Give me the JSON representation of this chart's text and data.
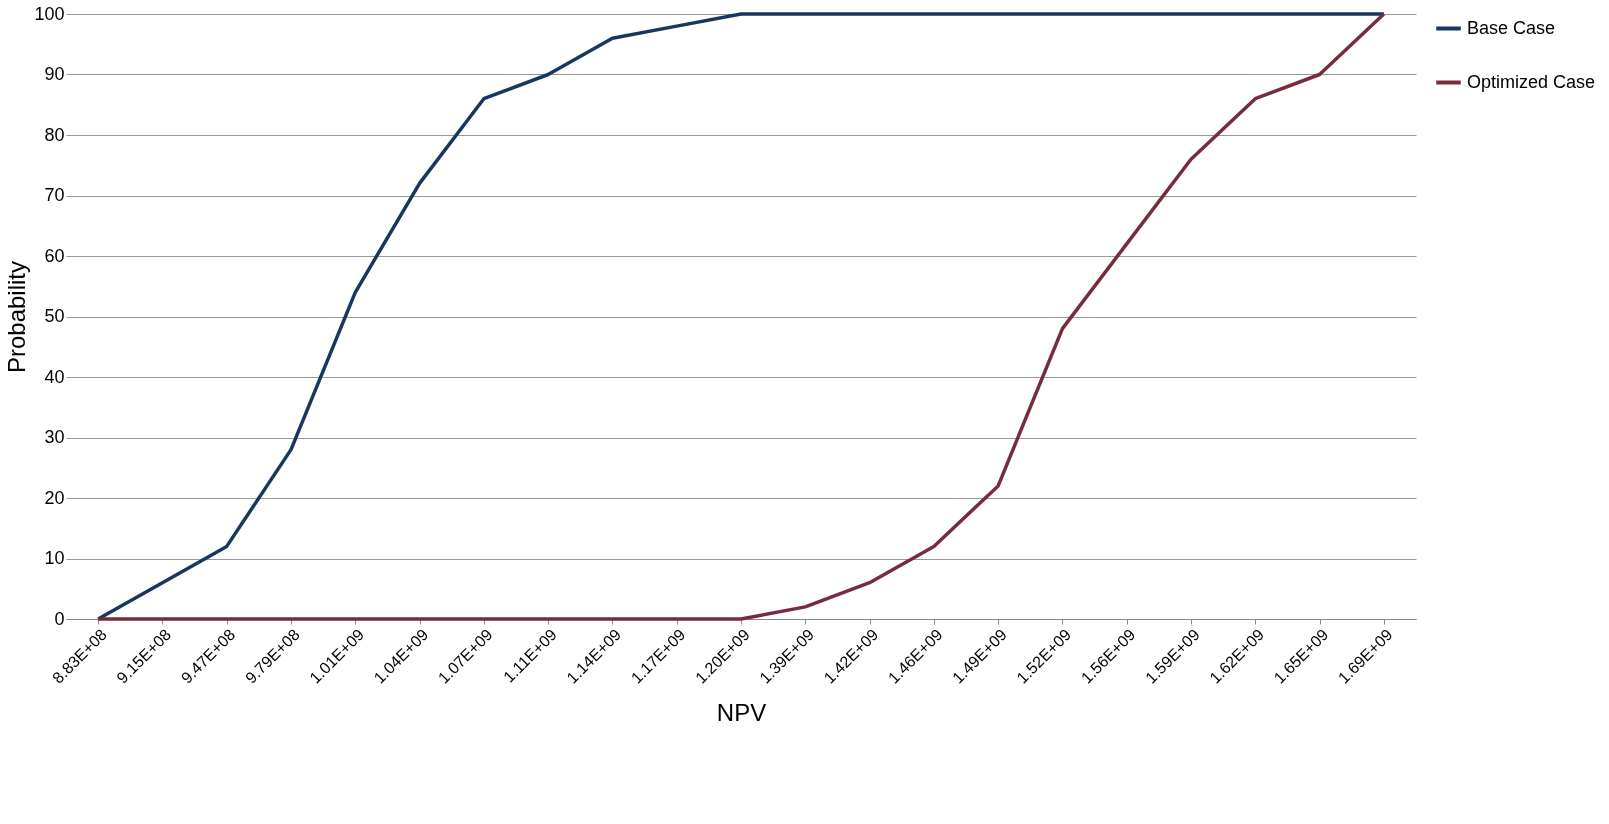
{
  "chart_data": {
    "type": "line",
    "xlabel": "NPV",
    "ylabel": "Probability",
    "categories": [
      "8.83E+08",
      "9.15E+08",
      "9.47E+08",
      "9.79E+08",
      "1.01E+09",
      "1.04E+09",
      "1.07E+09",
      "1.11E+09",
      "1.14E+09",
      "1.17E+09",
      "1.20E+09",
      "1.39E+09",
      "1.42E+09",
      "1.46E+09",
      "1.49E+09",
      "1.52E+09",
      "1.56E+09",
      "1.59E+09",
      "1.62E+09",
      "1.65E+09",
      "1.69E+09"
    ],
    "series": [
      {
        "name": "Base Case",
        "color": "#17375e",
        "values": [
          0,
          6,
          12,
          28,
          54,
          72,
          86,
          90,
          96,
          98,
          100,
          100,
          100,
          100,
          100,
          100,
          100,
          100,
          100,
          100,
          100
        ]
      },
      {
        "name": "Optimized Case",
        "color": "#772c3e",
        "values": [
          0,
          0,
          0,
          0,
          0,
          0,
          0,
          0,
          0,
          0,
          0,
          2,
          6,
          12,
          22,
          48,
          62,
          76,
          86,
          90,
          100
        ]
      }
    ],
    "ylim": [
      0,
      100
    ],
    "yticks": [
      0,
      10,
      20,
      30,
      40,
      50,
      60,
      70,
      80,
      90,
      100
    ],
    "grid": "y",
    "legend": "right",
    "marker": "none",
    "line_style": "solid"
  }
}
